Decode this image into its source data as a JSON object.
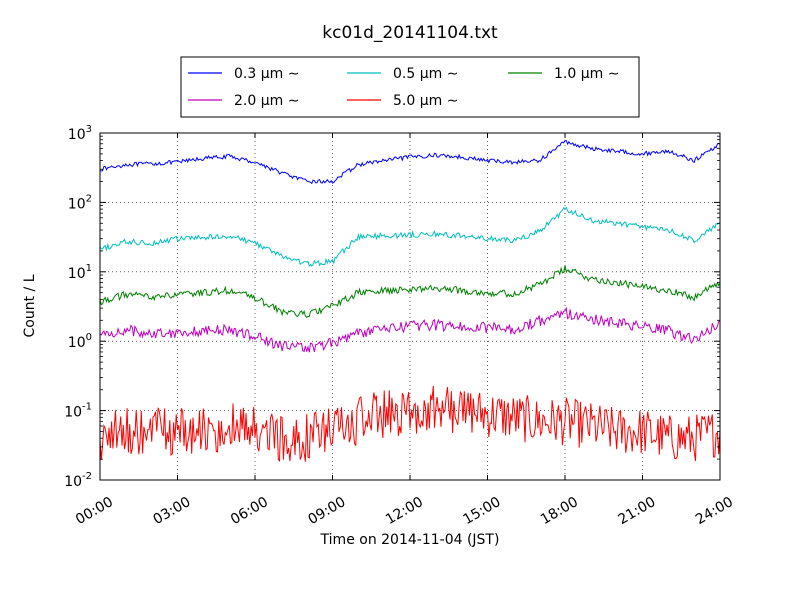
{
  "chart_data": {
    "type": "line",
    "title": "kc01d_20141104.txt",
    "xlabel": "Time on 2014-11-04 (JST)",
    "ylabel": "Count / L",
    "x_ticks": [
      "00:00",
      "03:00",
      "06:00",
      "09:00",
      "12:00",
      "15:00",
      "18:00",
      "21:00",
      "24:00"
    ],
    "y_ticks": [
      {
        "base": "10",
        "exp": "-2"
      },
      {
        "base": "10",
        "exp": "-1"
      },
      {
        "base": "10",
        "exp": "0"
      },
      {
        "base": "10",
        "exp": "1"
      },
      {
        "base": "10",
        "exp": "2"
      },
      {
        "base": "10",
        "exp": "3"
      }
    ],
    "xlim_hours": [
      0,
      24
    ],
    "ylim": [
      0.01,
      1000
    ],
    "yscale": "log",
    "grid": true,
    "legend_position": "top-center",
    "x_hours": [
      0,
      1,
      2,
      3,
      4,
      5,
      6,
      7,
      8,
      9,
      10,
      11,
      12,
      13,
      14,
      15,
      16,
      17,
      18,
      19,
      20,
      21,
      22,
      23,
      24
    ],
    "series": [
      {
        "name": "0.3 μm ∼",
        "color": "#0000ff",
        "values": [
          300,
          350,
          360,
          380,
          430,
          460,
          380,
          270,
          200,
          200,
          350,
          400,
          450,
          480,
          450,
          400,
          380,
          400,
          750,
          600,
          550,
          500,
          550,
          400,
          700
        ]
      },
      {
        "name": "0.5 μm ∼",
        "color": "#00bfbf",
        "values": [
          21,
          27,
          26,
          30,
          31,
          33,
          26,
          17,
          13,
          14,
          32,
          33,
          34,
          35,
          33,
          30,
          28,
          38,
          80,
          55,
          50,
          45,
          40,
          28,
          50
        ]
      },
      {
        "name": "1.0 μm ∼",
        "color": "#008000",
        "values": [
          3.7,
          4.7,
          4.4,
          4.6,
          5.0,
          5.4,
          4.2,
          2.7,
          2.4,
          3.2,
          5.0,
          5.3,
          5.6,
          5.8,
          5.4,
          5.0,
          4.8,
          6.5,
          11,
          8.0,
          7.0,
          6.0,
          5.5,
          4.2,
          7.2
        ]
      },
      {
        "name": "2.0 μm ∼",
        "color": "#bf00bf",
        "values": [
          1.2,
          1.45,
          1.3,
          1.35,
          1.4,
          1.45,
          1.2,
          0.85,
          0.8,
          0.95,
          1.3,
          1.5,
          1.65,
          1.7,
          1.65,
          1.55,
          1.5,
          1.95,
          2.6,
          2.1,
          1.8,
          1.6,
          1.4,
          1.05,
          1.8
        ]
      },
      {
        "name": "5.0 μm ∼",
        "color": "#ff0000",
        "values": [
          0.04,
          0.05,
          0.05,
          0.05,
          0.05,
          0.06,
          0.05,
          0.04,
          0.04,
          0.05,
          0.07,
          0.09,
          0.1,
          0.11,
          0.1,
          0.09,
          0.08,
          0.07,
          0.07,
          0.06,
          0.05,
          0.05,
          0.04,
          0.04,
          0.05
        ]
      }
    ]
  }
}
